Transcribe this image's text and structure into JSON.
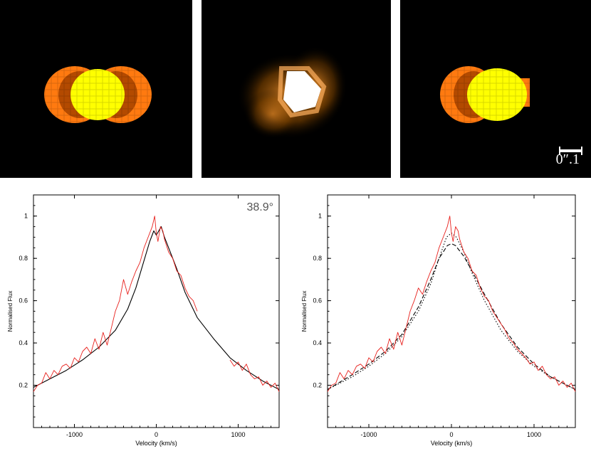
{
  "images": [
    {
      "id": "left",
      "type": "model"
    },
    {
      "id": "middle",
      "type": "observed"
    },
    {
      "id": "right",
      "type": "model",
      "scale_label": "0″.1"
    }
  ],
  "chart_data": [
    {
      "type": "line",
      "xlabel": "Velocity (km/s)",
      "ylabel": "Normalised Flux",
      "annotation": "38.9°",
      "xlim": [
        -1500,
        1500
      ],
      "ylim": [
        0,
        1.1
      ],
      "xticks": [
        -1000,
        0,
        1000
      ],
      "yticks": [
        0.2,
        0.4,
        0.6,
        0.8,
        1
      ],
      "colors": {
        "observed": "#e8211d",
        "model": "#000000"
      },
      "series": [
        {
          "style": "solid",
          "color": "#000000",
          "x": [
            -1500,
            -1300,
            -1100,
            -900,
            -700,
            -500,
            -350,
            -250,
            -150,
            -80,
            -30,
            0,
            30,
            60,
            100,
            150,
            250,
            350,
            500,
            700,
            900,
            1100,
            1300,
            1500
          ],
          "y": [
            0.19,
            0.23,
            0.27,
            0.32,
            0.38,
            0.46,
            0.56,
            0.66,
            0.79,
            0.88,
            0.93,
            0.91,
            0.93,
            0.95,
            0.9,
            0.85,
            0.75,
            0.64,
            0.52,
            0.42,
            0.33,
            0.27,
            0.22,
            0.18
          ]
        },
        {
          "style": "noisy",
          "color": "#e8211d",
          "x": [
            -1500,
            -1450,
            -1400,
            -1350,
            -1300,
            -1250,
            -1200,
            -1150,
            -1100,
            -1050,
            -1000,
            -950,
            -900,
            -850,
            -800,
            -750,
            -700,
            -650,
            -600,
            -550,
            -500,
            -450,
            -400,
            -350,
            -300,
            -250,
            -200,
            -150,
            -100,
            -50,
            -20,
            0,
            20,
            50,
            80,
            100,
            150,
            200,
            250,
            300,
            350,
            400,
            450,
            500
          ],
          "y": [
            0.17,
            0.2,
            0.21,
            0.26,
            0.23,
            0.27,
            0.25,
            0.29,
            0.3,
            0.28,
            0.33,
            0.31,
            0.36,
            0.38,
            0.35,
            0.42,
            0.37,
            0.45,
            0.39,
            0.47,
            0.55,
            0.6,
            0.7,
            0.63,
            0.69,
            0.74,
            0.78,
            0.85,
            0.9,
            0.95,
            1.0,
            0.92,
            0.88,
            0.95,
            0.93,
            0.89,
            0.83,
            0.8,
            0.74,
            0.72,
            0.66,
            0.62,
            0.6,
            0.55
          ]
        },
        {
          "style": "noisy",
          "color": "#e8211d",
          "x": [
            900,
            950,
            1000,
            1050,
            1100,
            1150,
            1200,
            1250,
            1300,
            1350,
            1400,
            1450,
            1500
          ],
          "y": [
            0.32,
            0.29,
            0.31,
            0.27,
            0.3,
            0.25,
            0.23,
            0.24,
            0.2,
            0.22,
            0.19,
            0.21,
            0.17
          ]
        }
      ]
    },
    {
      "type": "line",
      "xlabel": "Velocity (km/s)",
      "ylabel": "Normalised Flux",
      "xlim": [
        -1500,
        1500
      ],
      "ylim": [
        0,
        1.1
      ],
      "xticks": [
        -1000,
        0,
        1000
      ],
      "yticks": [
        0.2,
        0.4,
        0.6,
        0.8,
        1
      ],
      "series": [
        {
          "style": "dashed",
          "color": "#000000",
          "x": [
            -1500,
            -1200,
            -1000,
            -800,
            -600,
            -400,
            -250,
            -150,
            -50,
            0,
            50,
            150,
            250,
            400,
            600,
            800,
            1000,
            1200,
            1500
          ],
          "y": [
            0.18,
            0.25,
            0.3,
            0.36,
            0.44,
            0.57,
            0.7,
            0.8,
            0.86,
            0.87,
            0.86,
            0.81,
            0.74,
            0.63,
            0.49,
            0.38,
            0.3,
            0.24,
            0.18
          ]
        },
        {
          "style": "dotted",
          "color": "#000000",
          "x": [
            -1500,
            -1200,
            -1000,
            -800,
            -600,
            -400,
            -250,
            -150,
            -60,
            0,
            60,
            150,
            250,
            400,
            600,
            800,
            1000,
            1200,
            1500
          ],
          "y": [
            0.18,
            0.24,
            0.29,
            0.35,
            0.43,
            0.55,
            0.68,
            0.8,
            0.9,
            0.92,
            0.9,
            0.83,
            0.73,
            0.6,
            0.46,
            0.36,
            0.29,
            0.24,
            0.18
          ]
        },
        {
          "style": "noisy",
          "color": "#e8211d",
          "x": [
            -1500,
            -1450,
            -1400,
            -1350,
            -1300,
            -1250,
            -1200,
            -1150,
            -1100,
            -1050,
            -1000,
            -950,
            -900,
            -850,
            -800,
            -750,
            -700,
            -650,
            -600,
            -550,
            -500,
            -450,
            -400,
            -350,
            -300,
            -250,
            -200,
            -150,
            -100,
            -50,
            -20,
            0,
            20,
            50,
            80,
            100,
            150,
            200,
            250,
            300,
            350,
            400,
            450,
            500,
            550,
            600,
            650,
            700,
            750,
            800,
            850,
            900,
            950,
            1000,
            1050,
            1100,
            1150,
            1200,
            1250,
            1300,
            1350,
            1400,
            1450,
            1500
          ],
          "y": [
            0.17,
            0.2,
            0.21,
            0.26,
            0.23,
            0.27,
            0.25,
            0.29,
            0.3,
            0.28,
            0.33,
            0.31,
            0.36,
            0.38,
            0.35,
            0.42,
            0.37,
            0.45,
            0.39,
            0.47,
            0.55,
            0.6,
            0.66,
            0.63,
            0.69,
            0.74,
            0.78,
            0.85,
            0.9,
            0.95,
            1.0,
            0.92,
            0.88,
            0.95,
            0.93,
            0.89,
            0.83,
            0.8,
            0.74,
            0.72,
            0.66,
            0.62,
            0.6,
            0.55,
            0.52,
            0.49,
            0.46,
            0.42,
            0.4,
            0.37,
            0.35,
            0.33,
            0.3,
            0.31,
            0.27,
            0.29,
            0.25,
            0.23,
            0.24,
            0.2,
            0.22,
            0.19,
            0.21,
            0.17
          ]
        }
      ]
    }
  ]
}
